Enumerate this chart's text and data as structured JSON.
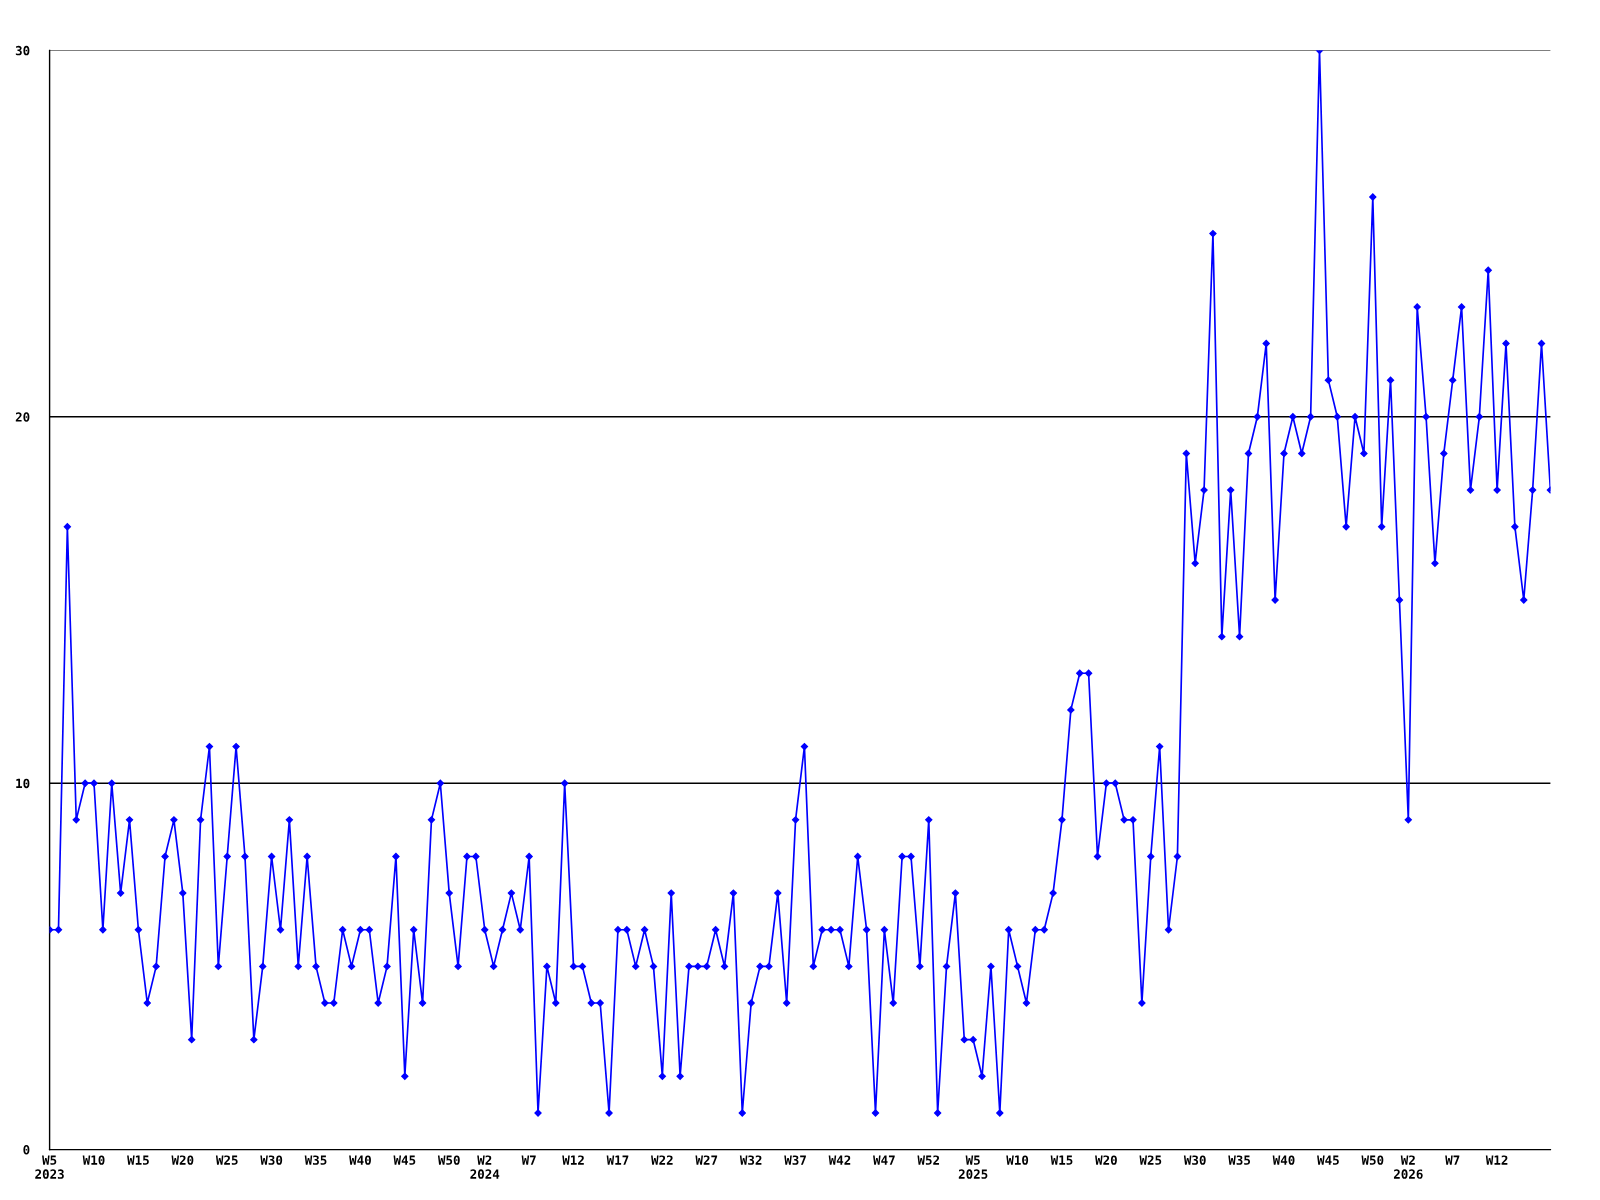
{
  "chart_data": {
    "type": "line",
    "categories": [
      "W5\n2023",
      null,
      null,
      null,
      null,
      "W10",
      null,
      null,
      null,
      null,
      "W15",
      null,
      null,
      null,
      null,
      "W20",
      null,
      null,
      null,
      null,
      "W25",
      null,
      null,
      null,
      null,
      "W30",
      null,
      null,
      null,
      null,
      "W35",
      null,
      null,
      null,
      null,
      "W40",
      null,
      null,
      null,
      null,
      "W45",
      null,
      null,
      null,
      null,
      "W50",
      null,
      null,
      null,
      "W2\n2024",
      null,
      null,
      null,
      null,
      "W7",
      null,
      null,
      null,
      null,
      "W12",
      null,
      null,
      null,
      null,
      "W17",
      null,
      null,
      null,
      null,
      "W22",
      null,
      null,
      null,
      null,
      "W27",
      null,
      null,
      null,
      null,
      "W32",
      null,
      null,
      null,
      null,
      "W37",
      null,
      null,
      null,
      null,
      "W42",
      null,
      null,
      null,
      null,
      "W47",
      null,
      null,
      null,
      null,
      "W52",
      null,
      null,
      null,
      null,
      "W5\n2025",
      null,
      null,
      null,
      null,
      "W10",
      null,
      null,
      null,
      null,
      "W15",
      null,
      null,
      null,
      null,
      "W20",
      null,
      null,
      null,
      null,
      "W25",
      null,
      null,
      null,
      null,
      "W30",
      null,
      null,
      null,
      null,
      "W35",
      null,
      null,
      null,
      null,
      "W40",
      null,
      null,
      null,
      null,
      "W45",
      null,
      null,
      null,
      null,
      "W50",
      null,
      null,
      null,
      "W2\n2026",
      null,
      null,
      null,
      null,
      "W7",
      null,
      null,
      null,
      null,
      "W12",
      null,
      null,
      null,
      null,
      null,
      null
    ],
    "series": [
      {
        "color": "#0000ff",
        "values": [
          6,
          6,
          17,
          9,
          10,
          10,
          6,
          10,
          7,
          9,
          6,
          4,
          5,
          8,
          9,
          7,
          3,
          9,
          11,
          5,
          8,
          11,
          8,
          3,
          5,
          8,
          6,
          9,
          5,
          8,
          5,
          4,
          4,
          6,
          5,
          6,
          6,
          4,
          5,
          8,
          2,
          6,
          4,
          9,
          10,
          7,
          5,
          8,
          8,
          6,
          5,
          6,
          7,
          6,
          8,
          1,
          5,
          4,
          10,
          5,
          5,
          4,
          4,
          1,
          6,
          6,
          5,
          6,
          5,
          2,
          7,
          2,
          5,
          5,
          5,
          6,
          5,
          7,
          1,
          4,
          5,
          5,
          7,
          4,
          9,
          11,
          5,
          6,
          6,
          6,
          5,
          8,
          6,
          1,
          6,
          4,
          8,
          8,
          5,
          9,
          1,
          5,
          7,
          3,
          3,
          2,
          5,
          1,
          6,
          5,
          4,
          6,
          6,
          7,
          9,
          12,
          13,
          13,
          8,
          10,
          10,
          9,
          9,
          4,
          8,
          11,
          6,
          8,
          19,
          16,
          18,
          25,
          14,
          18,
          14,
          19,
          20,
          22,
          15,
          19,
          20,
          19,
          20,
          30,
          21,
          20,
          17,
          20,
          19,
          26,
          17,
          21,
          15,
          9,
          23,
          20,
          16,
          19,
          21,
          23,
          18,
          20,
          24,
          18,
          22,
          17,
          15,
          18,
          22,
          18
        ]
      }
    ],
    "ylim": [
      0,
      30
    ],
    "yticks": [
      0,
      10,
      20,
      30
    ],
    "grid": "y",
    "marker": "diamond",
    "line_style": "solid"
  }
}
